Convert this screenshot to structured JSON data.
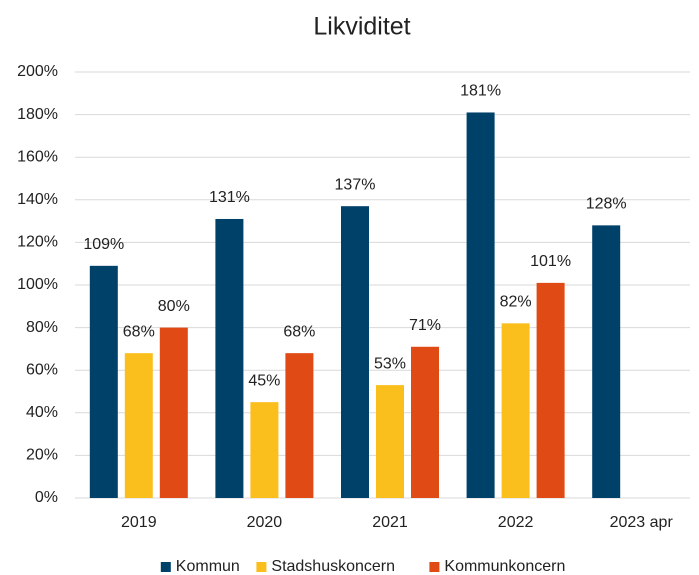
{
  "chart_data": {
    "type": "bar",
    "title": "Likviditet",
    "categories": [
      "2019",
      "2020",
      "2021",
      "2022",
      "2023 apr"
    ],
    "series": [
      {
        "name": "Kommun",
        "color": "#00416a",
        "values": [
          109,
          131,
          137,
          181,
          128
        ],
        "value_labels": [
          "109%",
          "131%",
          "137%",
          "181%",
          "128%"
        ]
      },
      {
        "name": "Stadshuskoncern",
        "color": "#fbbf1d",
        "values": [
          68,
          45,
          53,
          82,
          null
        ],
        "value_labels": [
          "68%",
          "45%",
          "53%",
          "82%",
          null
        ]
      },
      {
        "name": "Kommunkoncern",
        "color": "#e04a14",
        "values": [
          80,
          68,
          71,
          101,
          null
        ],
        "value_labels": [
          "80%",
          "68%",
          "71%",
          "101%",
          null
        ]
      }
    ],
    "ylim": [
      0,
      200
    ],
    "yticks": [
      {
        "value": 0,
        "label": "0%"
      },
      {
        "value": 20,
        "label": "20%"
      },
      {
        "value": 40,
        "label": "40%"
      },
      {
        "value": 60,
        "label": "60%"
      },
      {
        "value": 80,
        "label": "80%"
      },
      {
        "value": 100,
        "label": "100%"
      },
      {
        "value": 120,
        "label": "120%"
      },
      {
        "value": 140,
        "label": "140%"
      },
      {
        "value": 160,
        "label": "160%"
      },
      {
        "value": 180,
        "label": "180%"
      },
      {
        "value": 200,
        "label": "200%"
      }
    ],
    "grid": true,
    "legend": "bottom"
  }
}
